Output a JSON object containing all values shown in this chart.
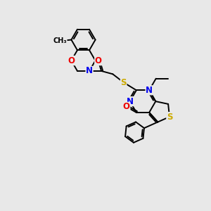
{
  "bg": "#e8e8e8",
  "C": "#000000",
  "N": "#0000ee",
  "O": "#ee0000",
  "S": "#ccaa00",
  "bw": 1.4,
  "fs": 8.5
}
